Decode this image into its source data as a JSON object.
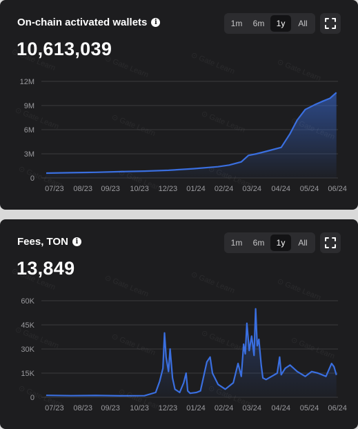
{
  "range_options": [
    "1m",
    "6m",
    "1y",
    "All"
  ],
  "watermark_text": "Gate Learn",
  "charts": [
    {
      "title": "On-chain activated wallets",
      "value": "10,613,039",
      "active_range": "1y",
      "accent_color": "#3a6fe0"
    },
    {
      "title": "Fees, TON",
      "value": "13,849",
      "active_range": "1y",
      "accent_color": "#3a6fe0"
    }
  ],
  "chart_data": [
    {
      "type": "area",
      "x_tick_labels": [
        "07/23",
        "08/23",
        "09/23",
        "10/23",
        "12/23",
        "01/24",
        "02/24",
        "03/24",
        "04/24",
        "05/24",
        "06/24"
      ],
      "y_tick_labels": [
        "0",
        "3M",
        "6M",
        "9M",
        "12M"
      ],
      "ylim": [
        0,
        12000000
      ],
      "grid": true,
      "series_color": "#3a6fe0",
      "x": [
        "2023-07-01",
        "2023-08-01",
        "2023-09-01",
        "2023-10-01",
        "2023-11-01",
        "2023-12-01",
        "2024-01-01",
        "2024-02-01",
        "2024-02-15",
        "2024-03-01",
        "2024-03-10",
        "2024-03-20",
        "2024-04-01",
        "2024-04-20",
        "2024-05-01",
        "2024-05-10",
        "2024-05-20",
        "2024-06-01",
        "2024-06-10",
        "2024-06-20",
        "2024-06-28"
      ],
      "values": [
        600000,
        650000,
        700000,
        780000,
        850000,
        950000,
        1150000,
        1400000,
        1600000,
        2000000,
        2800000,
        3000000,
        3300000,
        3800000,
        5500000,
        7200000,
        8500000,
        9100000,
        9500000,
        9900000,
        10613039
      ]
    },
    {
      "type": "line",
      "x_tick_labels": [
        "07/23",
        "08/23",
        "09/23",
        "10/23",
        "12/23",
        "01/24",
        "02/24",
        "03/24",
        "04/24",
        "05/24",
        "06/24"
      ],
      "y_tick_labels": [
        "0",
        "15K",
        "30K",
        "45K",
        "60K"
      ],
      "ylim": [
        0,
        60000
      ],
      "grid": true,
      "series_color": "#3a6fe0",
      "x": [
        "2023-07-01",
        "2023-08-01",
        "2023-09-01",
        "2023-10-01",
        "2023-11-01",
        "2023-11-15",
        "2023-11-20",
        "2023-11-24",
        "2023-11-26",
        "2023-11-28",
        "2023-12-01",
        "2023-12-03",
        "2023-12-06",
        "2023-12-09",
        "2023-12-15",
        "2023-12-20",
        "2023-12-23",
        "2023-12-25",
        "2023-12-28",
        "2024-01-05",
        "2024-01-10",
        "2024-01-18",
        "2024-01-22",
        "2024-01-25",
        "2024-02-01",
        "2024-02-10",
        "2024-02-20",
        "2024-02-26",
        "2024-03-01",
        "2024-03-04",
        "2024-03-06",
        "2024-03-08",
        "2024-03-11",
        "2024-03-14",
        "2024-03-17",
        "2024-03-19",
        "2024-03-21",
        "2024-03-23",
        "2024-03-26",
        "2024-03-28",
        "2024-04-01",
        "2024-04-08",
        "2024-04-15",
        "2024-04-18",
        "2024-04-20",
        "2024-04-25",
        "2024-05-01",
        "2024-05-10",
        "2024-05-20",
        "2024-05-28",
        "2024-06-05",
        "2024-06-15",
        "2024-06-22",
        "2024-06-25",
        "2024-06-28"
      ],
      "values": [
        1200,
        1000,
        1100,
        900,
        1000,
        3000,
        10000,
        18000,
        40000,
        25000,
        16000,
        30000,
        12000,
        5000,
        3000,
        9000,
        15000,
        4000,
        2500,
        3000,
        4000,
        22000,
        25000,
        15000,
        8000,
        5000,
        9000,
        21000,
        13000,
        33000,
        27000,
        46000,
        29000,
        38000,
        26000,
        55000,
        32000,
        36000,
        20000,
        12000,
        11000,
        13000,
        15000,
        25000,
        14000,
        18000,
        20000,
        16000,
        13000,
        16000,
        15000,
        13000,
        21000,
        19000,
        13849
      ]
    }
  ]
}
